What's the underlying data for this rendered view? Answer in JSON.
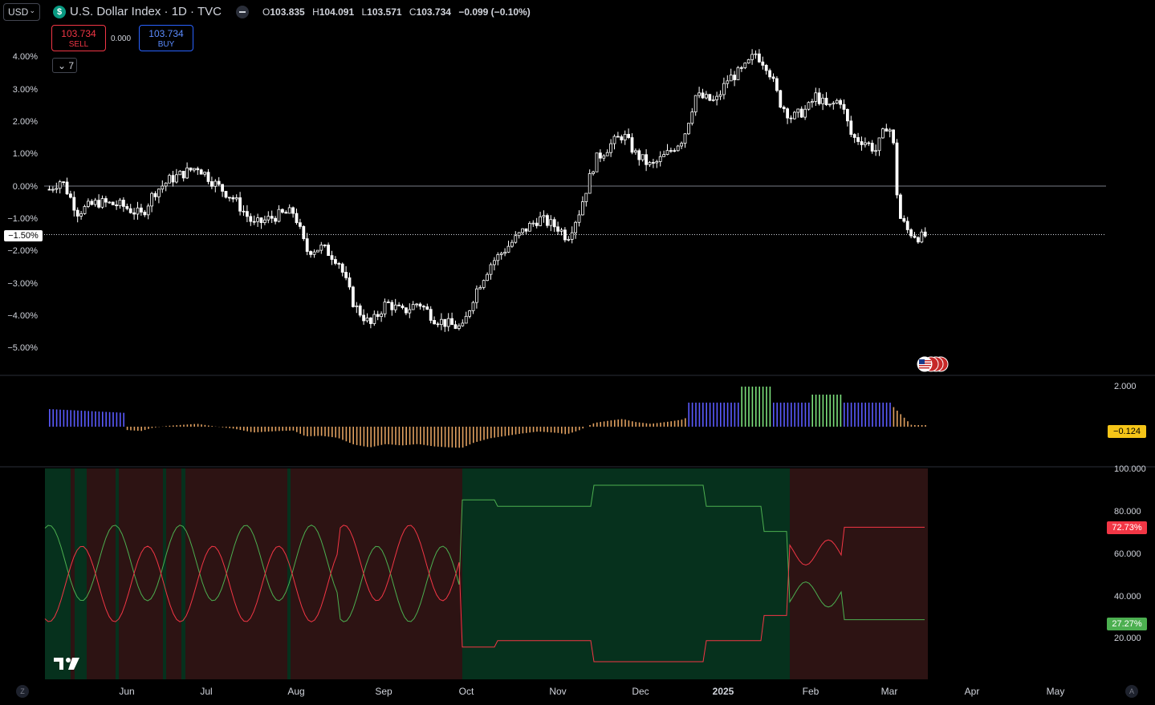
{
  "header": {
    "currency": "USD",
    "symbol_icon": "$",
    "title": "U.S. Dollar Index · 1D · TVC",
    "ohlc": {
      "o_label": "O",
      "o": "103.835",
      "h_label": "H",
      "h": "104.091",
      "l_label": "L",
      "l": "103.571",
      "c_label": "C",
      "c": "103.734",
      "change": "−0.099 (−0.10%)"
    }
  },
  "trade": {
    "sell_price": "103.734",
    "sell_label": "SELL",
    "spread": "0.000",
    "buy_price": "103.734",
    "buy_label": "BUY",
    "indicators_count": "7"
  },
  "main_axis": {
    "ticks": [
      "4.00%",
      "3.00%",
      "2.00%",
      "1.00%",
      "0.00%",
      "−1.00%",
      "−2.00%",
      "−3.00%",
      "−4.00%",
      "−5.00%"
    ],
    "tick_values": [
      4,
      3,
      2,
      1,
      0,
      -1,
      -2,
      -3,
      -4,
      -5
    ],
    "current_label": "−1.50%",
    "current_value": -1.5
  },
  "osc_panel": {
    "top_tick": "2.000",
    "last_value": "−0.124"
  },
  "ratio_panel": {
    "ticks": [
      "100.000",
      "80.000",
      "60.000",
      "40.000",
      "20.000"
    ],
    "red_last": "72.73%",
    "green_last": "27.27%"
  },
  "time_axis": {
    "labels": [
      "Jun",
      "Jul",
      "Aug",
      "Sep",
      "Oct",
      "Nov",
      "Dec",
      "2025",
      "Feb",
      "Mar",
      "Apr",
      "May"
    ],
    "left_btn": "Z",
    "right_btn": "A"
  },
  "colors": {
    "background": "#000000",
    "up": "#ffffff",
    "bull_zone": "#06311d",
    "bear_zone": "#2d1313",
    "red_line": "#f23645",
    "green_line": "#4caf50",
    "hist_blue": "#5b5bff",
    "hist_orange": "#e0a060",
    "hist_green": "#7ce07c",
    "tag_yellow": "#f5c518"
  }
}
